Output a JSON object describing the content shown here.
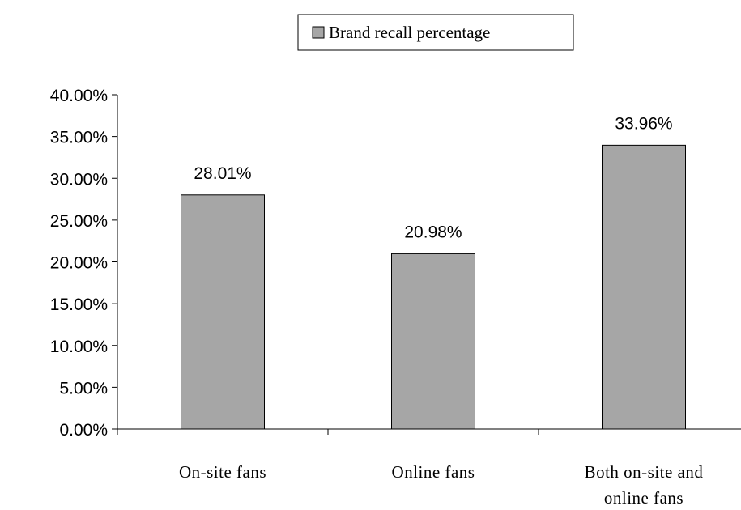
{
  "chart_data": {
    "type": "bar",
    "categories": [
      "On-site fans",
      "Online fans",
      "Both on-site and online fans"
    ],
    "category_lines": [
      [
        "On-site fans"
      ],
      [
        "Online fans"
      ],
      [
        "Both on-site and",
        "online fans"
      ]
    ],
    "series": [
      {
        "name": "Brand recall percentage",
        "values": [
          28.01,
          20.98,
          33.96
        ],
        "labels": [
          "28.01%",
          "20.98%",
          "33.96%"
        ],
        "color": "#a6a6a6"
      }
    ],
    "ylim": [
      0,
      40
    ],
    "yticks": [
      0,
      5,
      10,
      15,
      20,
      25,
      30,
      35,
      40
    ],
    "ytick_labels": [
      "0.00%",
      "5.00%",
      "10.00%",
      "15.00%",
      "20.00%",
      "25.00%",
      "30.00%",
      "35.00%",
      "40.00%"
    ],
    "grid": false,
    "legend_position": "top-center"
  }
}
